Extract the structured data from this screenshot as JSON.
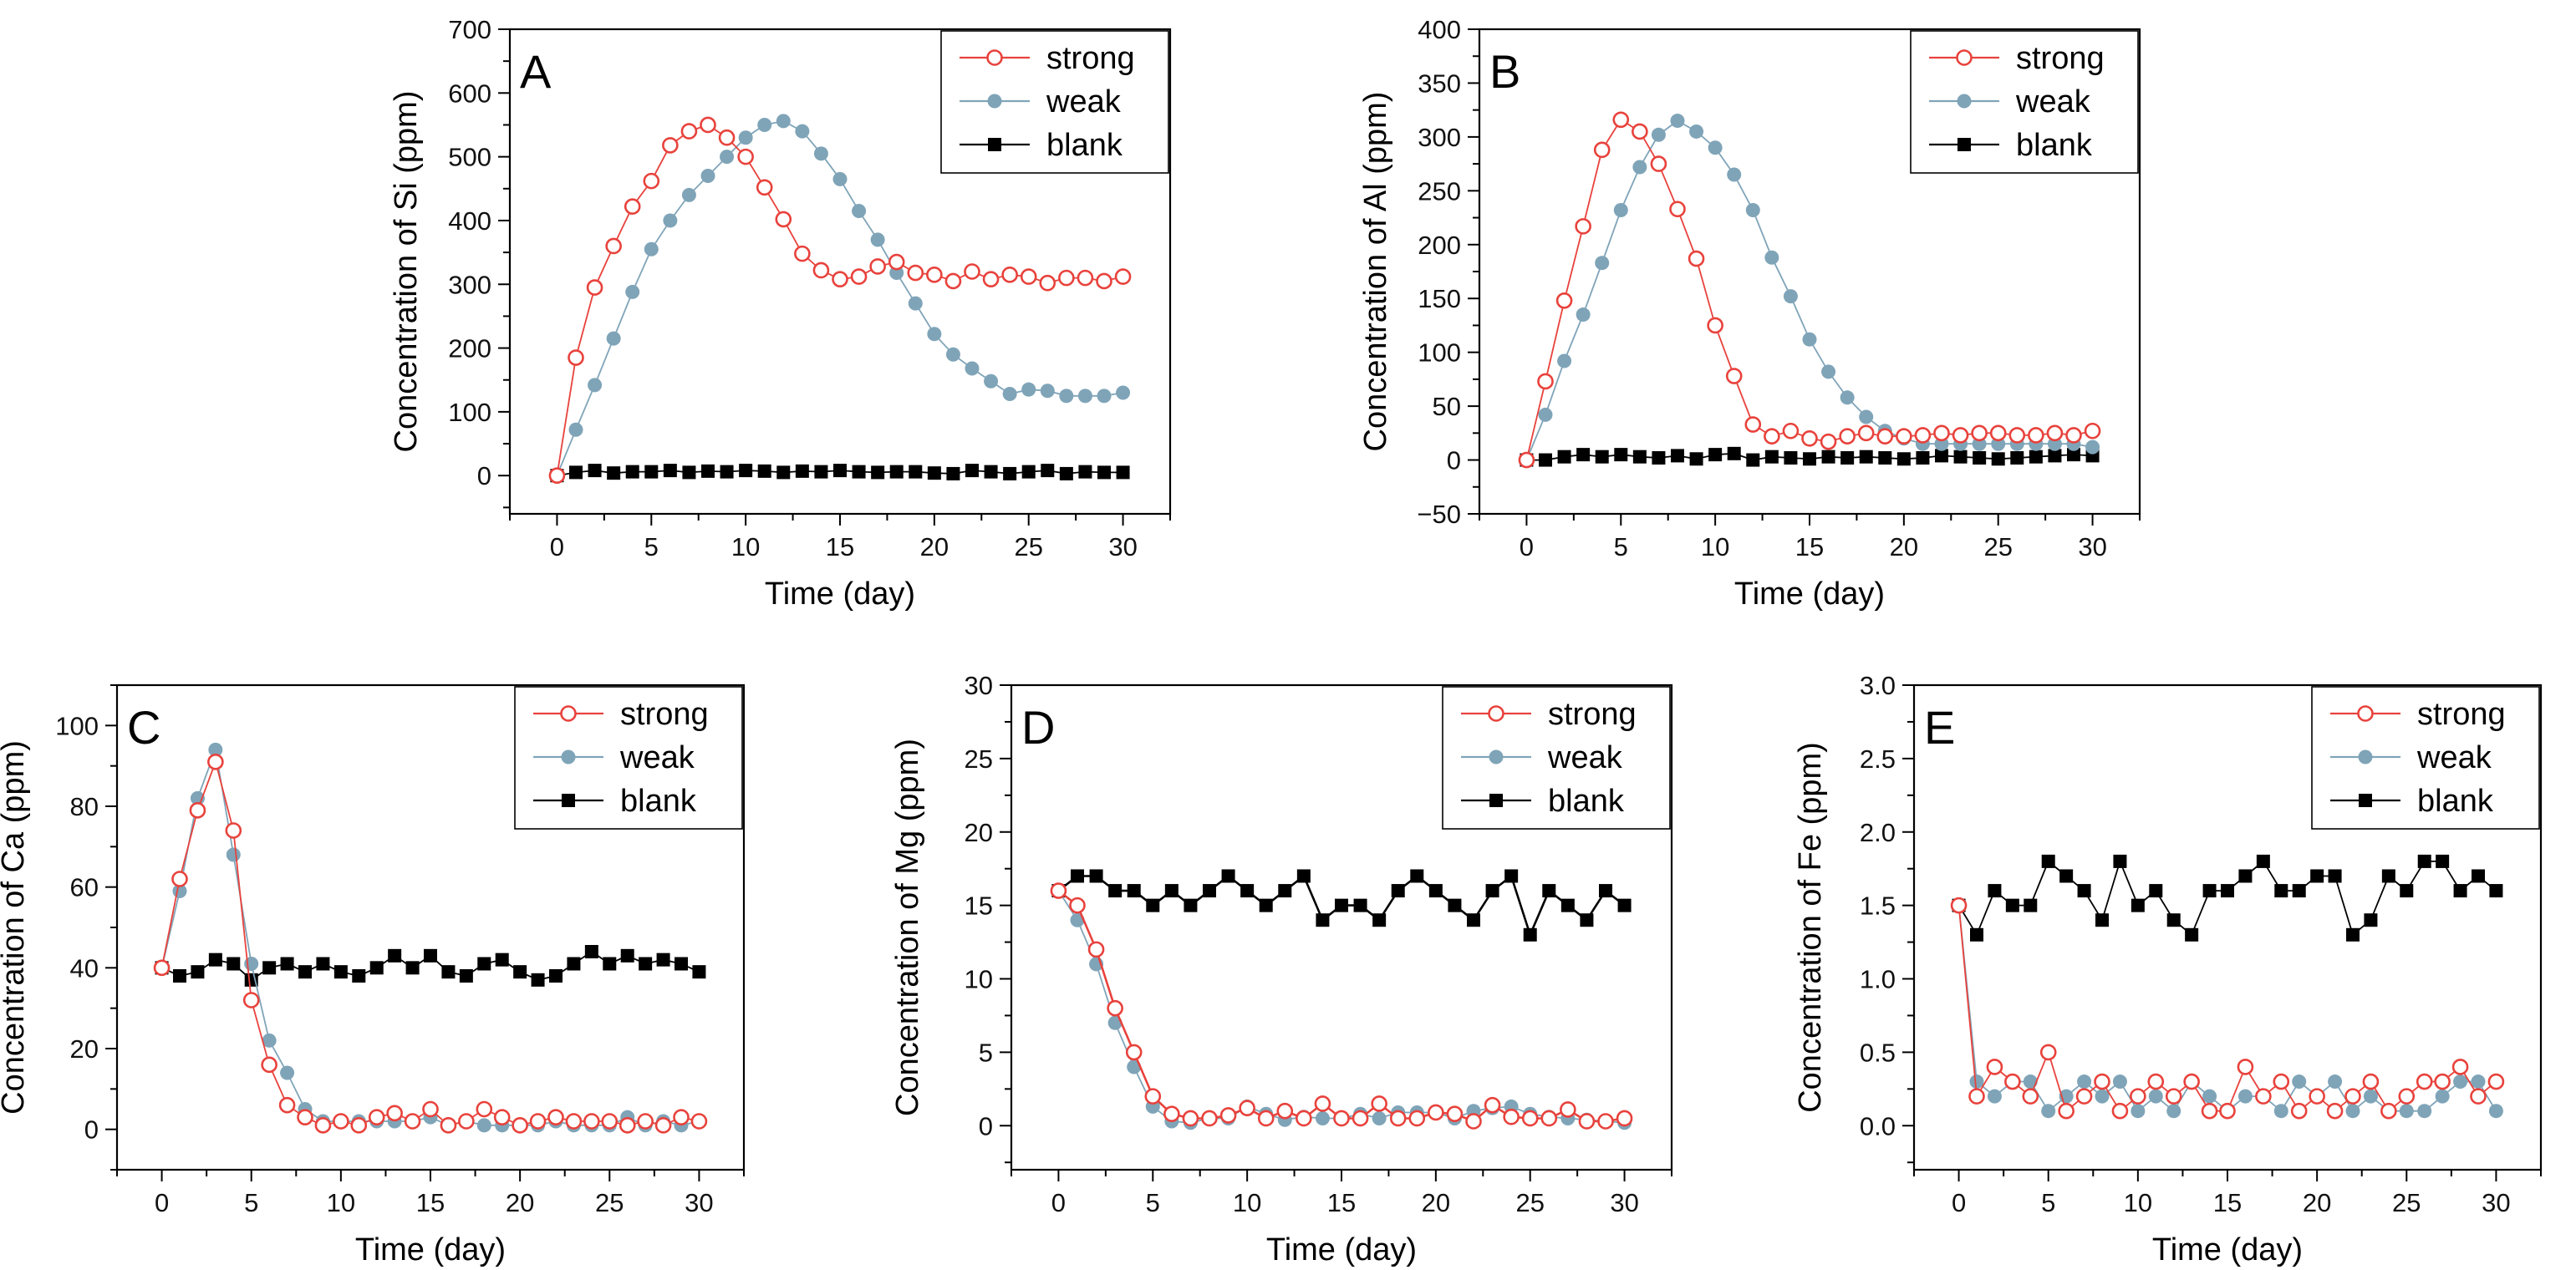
{
  "figure": {
    "series_styles": {
      "strong": {
        "color": "#e8423c",
        "marker": "open-circle"
      },
      "weak": {
        "color": "#7fa4b8",
        "marker": "filled-circle"
      },
      "blank": {
        "color": "#000000",
        "marker": "filled-square"
      }
    }
  },
  "chart_data": [
    {
      "panel": "A",
      "type": "line",
      "title": "",
      "xlabel": "Time (day)",
      "ylabel": "Concentration of Si (ppm)",
      "xlim": [
        -2.5,
        32.5
      ],
      "ylim": [
        -60,
        700
      ],
      "xticks": [
        0,
        5,
        10,
        15,
        20,
        25,
        30
      ],
      "yticks": [
        0,
        100,
        200,
        300,
        400,
        500,
        600,
        700
      ],
      "legend_position": "top-right",
      "x": [
        0,
        1,
        2,
        3,
        4,
        5,
        6,
        7,
        8,
        9,
        10,
        11,
        12,
        13,
        14,
        15,
        16,
        17,
        18,
        19,
        20,
        21,
        22,
        23,
        24,
        25,
        26,
        27,
        28,
        29,
        30
      ],
      "series": [
        {
          "name": "strong",
          "values": [
            0,
            185,
            295,
            360,
            422,
            462,
            518,
            540,
            550,
            530,
            500,
            452,
            402,
            348,
            322,
            308,
            312,
            328,
            335,
            318,
            315,
            305,
            320,
            308,
            315,
            312,
            302,
            310,
            310,
            305,
            312
          ]
        },
        {
          "name": "weak",
          "values": [
            0,
            72,
            142,
            215,
            288,
            355,
            400,
            440,
            470,
            500,
            530,
            550,
            556,
            540,
            505,
            465,
            415,
            370,
            318,
            270,
            222,
            190,
            168,
            148,
            128,
            135,
            133,
            125,
            125,
            125,
            130
          ]
        },
        {
          "name": "blank",
          "values": [
            0,
            5,
            8,
            4,
            6,
            6,
            8,
            5,
            7,
            6,
            8,
            7,
            5,
            7,
            6,
            8,
            6,
            5,
            6,
            6,
            4,
            3,
            8,
            6,
            3,
            6,
            8,
            3,
            6,
            5,
            5
          ]
        }
      ]
    },
    {
      "panel": "B",
      "type": "line",
      "title": "",
      "xlabel": "Time (day)",
      "ylabel": "Concentration of Al (ppm)",
      "xlim": [
        -2.5,
        32.5
      ],
      "ylim": [
        -50,
        400
      ],
      "xticks": [
        0,
        5,
        10,
        15,
        20,
        25,
        30
      ],
      "yticks": [
        -50,
        0,
        50,
        100,
        150,
        200,
        250,
        300,
        350,
        400
      ],
      "legend_position": "top-right",
      "x": [
        0,
        1,
        2,
        3,
        4,
        5,
        6,
        7,
        8,
        9,
        10,
        11,
        12,
        13,
        14,
        15,
        16,
        17,
        18,
        19,
        20,
        21,
        22,
        23,
        24,
        25,
        26,
        27,
        28,
        29,
        30
      ],
      "series": [
        {
          "name": "strong",
          "values": [
            0,
            73,
            148,
            217,
            288,
            316,
            305,
            275,
            233,
            187,
            125,
            78,
            33,
            22,
            27,
            20,
            17,
            22,
            25,
            22,
            22,
            23,
            25,
            23,
            25,
            25,
            23,
            23,
            25,
            23,
            27
          ]
        },
        {
          "name": "weak",
          "values": [
            0,
            42,
            92,
            135,
            183,
            232,
            272,
            302,
            315,
            305,
            290,
            265,
            232,
            188,
            152,
            112,
            82,
            58,
            40,
            27,
            20,
            15,
            15,
            15,
            15,
            15,
            15,
            15,
            15,
            15,
            12
          ]
        },
        {
          "name": "blank",
          "values": [
            0,
            0,
            3,
            5,
            3,
            5,
            3,
            2,
            4,
            1,
            5,
            6,
            0,
            3,
            2,
            1,
            3,
            2,
            3,
            2,
            1,
            2,
            4,
            3,
            2,
            1,
            2,
            3,
            4,
            5,
            4
          ]
        }
      ]
    },
    {
      "panel": "C",
      "type": "line",
      "title": "",
      "xlabel": "Time (day)",
      "ylabel": "Concentration of Ca (ppm)",
      "xlim": [
        -2.5,
        32.5
      ],
      "ylim": [
        -10,
        110
      ],
      "xticks": [
        0,
        5,
        10,
        15,
        20,
        25,
        30
      ],
      "yticks": [
        0,
        20,
        40,
        60,
        80,
        100
      ],
      "legend_position": "top-right",
      "x": [
        0,
        1,
        2,
        3,
        4,
        5,
        6,
        7,
        8,
        9,
        10,
        11,
        12,
        13,
        14,
        15,
        16,
        17,
        18,
        19,
        20,
        21,
        22,
        23,
        24,
        25,
        26,
        27,
        28,
        29,
        30
      ],
      "series": [
        {
          "name": "strong",
          "values": [
            40,
            62,
            79,
            91,
            74,
            32,
            16,
            6,
            3,
            1,
            2,
            1,
            3,
            4,
            2,
            5,
            1,
            2,
            5,
            3,
            1,
            2,
            3,
            2,
            2,
            2,
            1,
            2,
            1,
            3,
            2
          ]
        },
        {
          "name": "weak",
          "values": [
            40,
            59,
            82,
            94,
            68,
            41,
            22,
            14,
            5,
            2,
            2,
            2,
            2,
            2,
            2,
            3,
            1,
            2,
            1,
            1,
            1,
            1,
            2,
            1,
            1,
            1,
            3,
            1,
            2,
            1,
            2
          ]
        },
        {
          "name": "blank",
          "values": [
            40,
            38,
            39,
            42,
            41,
            37,
            40,
            41,
            39,
            41,
            39,
            38,
            40,
            43,
            40,
            43,
            39,
            38,
            41,
            42,
            39,
            37,
            38,
            41,
            44,
            41,
            43,
            41,
            42,
            41,
            39
          ]
        }
      ]
    },
    {
      "panel": "D",
      "type": "line",
      "title": "",
      "xlabel": "Time (day)",
      "ylabel": "Concentration of Mg (ppm)",
      "xlim": [
        -2.5,
        32.5
      ],
      "ylim": [
        -3,
        30
      ],
      "xticks": [
        0,
        5,
        10,
        15,
        20,
        25,
        30
      ],
      "yticks": [
        0,
        5,
        10,
        15,
        20,
        25,
        30
      ],
      "legend_position": "top-right",
      "x": [
        0,
        1,
        2,
        3,
        4,
        5,
        6,
        7,
        8,
        9,
        10,
        11,
        12,
        13,
        14,
        15,
        16,
        17,
        18,
        19,
        20,
        21,
        22,
        23,
        24,
        25,
        26,
        27,
        28,
        29,
        30
      ],
      "series": [
        {
          "name": "strong",
          "values": [
            16,
            15,
            12,
            8,
            5,
            2,
            0.8,
            0.5,
            0.5,
            0.7,
            1.2,
            0.5,
            1,
            0.5,
            1.5,
            0.5,
            0.5,
            1.5,
            0.5,
            0.5,
            0.9,
            0.8,
            0.3,
            1.4,
            0.6,
            0.5,
            0.5,
            1.1,
            0.3,
            0.3,
            0.5
          ]
        },
        {
          "name": "weak",
          "values": [
            16,
            14,
            11,
            7,
            4,
            1.3,
            0.3,
            0.2,
            0.5,
            0.5,
            1.3,
            0.8,
            0.4,
            0.6,
            0.5,
            0.5,
            0.8,
            0.5,
            0.9,
            0.9,
            0.9,
            0.5,
            1,
            1.2,
            1.3,
            0.8,
            0.6,
            0.5,
            0.4,
            0.3,
            0.2
          ]
        },
        {
          "name": "blank",
          "values": [
            16,
            17,
            17,
            16,
            16,
            15,
            16,
            15,
            16,
            17,
            16,
            15,
            16,
            17,
            14,
            15,
            15,
            14,
            16,
            17,
            16,
            15,
            14,
            16,
            17,
            13,
            16,
            15,
            14,
            16,
            15
          ]
        }
      ]
    },
    {
      "panel": "E",
      "type": "line",
      "title": "",
      "xlabel": "Time (day)",
      "ylabel": "Concentration of Fe (ppm)",
      "xlim": [
        -2.5,
        32.5
      ],
      "ylim": [
        -0.3,
        3.0
      ],
      "xticks": [
        0,
        5,
        10,
        15,
        20,
        25,
        30
      ],
      "yticks": [
        0.0,
        0.5,
        1.0,
        1.5,
        2.0,
        2.5,
        3.0
      ],
      "legend_position": "top-right",
      "x": [
        0,
        1,
        2,
        3,
        4,
        5,
        6,
        7,
        8,
        9,
        10,
        11,
        12,
        13,
        14,
        15,
        16,
        17,
        18,
        19,
        20,
        21,
        22,
        23,
        24,
        25,
        26,
        27,
        28,
        29,
        30
      ],
      "series": [
        {
          "name": "strong",
          "values": [
            1.5,
            0.2,
            0.4,
            0.3,
            0.2,
            0.5,
            0.1,
            0.2,
            0.3,
            0.1,
            0.2,
            0.3,
            0.2,
            0.3,
            0.1,
            0.1,
            0.4,
            0.2,
            0.3,
            0.1,
            0.2,
            0.1,
            0.2,
            0.3,
            0.1,
            0.2,
            0.3,
            0.3,
            0.4,
            0.2,
            0.3
          ]
        },
        {
          "name": "weak",
          "values": [
            1.5,
            0.3,
            0.2,
            0.3,
            0.3,
            0.1,
            0.2,
            0.3,
            0.2,
            0.3,
            0.1,
            0.2,
            0.1,
            0.3,
            0.2,
            0.1,
            0.2,
            0.2,
            0.1,
            0.3,
            0.2,
            0.3,
            0.1,
            0.2,
            0.1,
            0.1,
            0.1,
            0.2,
            0.3,
            0.3,
            0.1
          ]
        },
        {
          "name": "blank",
          "values": [
            1.5,
            1.3,
            1.6,
            1.5,
            1.5,
            1.8,
            1.7,
            1.6,
            1.4,
            1.8,
            1.5,
            1.6,
            1.4,
            1.3,
            1.6,
            1.6,
            1.7,
            1.8,
            1.6,
            1.6,
            1.7,
            1.7,
            1.3,
            1.4,
            1.7,
            1.6,
            1.8,
            1.8,
            1.6,
            1.7,
            1.6
          ]
        }
      ]
    }
  ]
}
